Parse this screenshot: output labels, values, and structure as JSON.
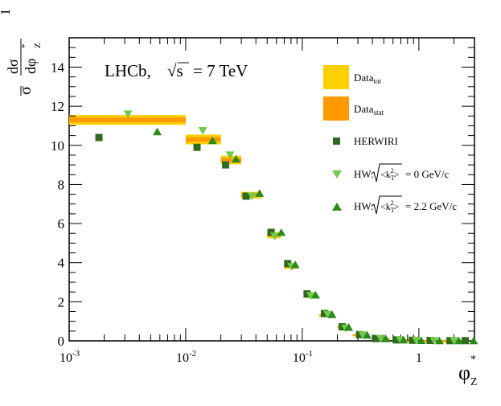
{
  "chart_data": {
    "type": "scatter",
    "title": "",
    "annotation": {
      "experiment": "LHCb,",
      "energy_prefix": "√s",
      "energy_value": "= 7 TeV"
    },
    "xaxis": {
      "label_main": "φ",
      "label_sup": "*",
      "label_sub": "Z",
      "scale": "log",
      "range": [
        0.001,
        3.0
      ],
      "ticks": [
        {
          "v": 0.001,
          "base": "10",
          "exp": "-3"
        },
        {
          "v": 0.01,
          "base": "10",
          "exp": "-2"
        },
        {
          "v": 0.1,
          "base": "10",
          "exp": "-1"
        },
        {
          "v": 1,
          "base": "1",
          "exp": ""
        }
      ]
    },
    "yaxis": {
      "label_parts": {
        "frac_num": "1",
        "frac_den": "σ",
        "d_num": "dσ",
        "d_den": "dφ",
        "d_den_sup": "*",
        "d_den_sub": "Z"
      },
      "range": [
        0,
        15.5
      ],
      "ticks": [
        "0",
        "2",
        "4",
        "6",
        "8",
        "10",
        "12",
        "14"
      ],
      "tick_values": [
        0,
        2,
        4,
        6,
        8,
        10,
        12,
        14
      ]
    },
    "bands": [
      {
        "x0": 0.001,
        "x1": 0.01,
        "y": 11.3,
        "tot": 0.25,
        "stat": 0.12
      },
      {
        "x0": 0.01,
        "x1": 0.02,
        "y": 10.3,
        "tot": 0.25,
        "stat": 0.12
      },
      {
        "x0": 0.02,
        "x1": 0.03,
        "y": 9.25,
        "tot": 0.22,
        "stat": 0.1
      },
      {
        "x0": 0.03,
        "x1": 0.045,
        "y": 7.45,
        "tot": 0.17,
        "stat": 0.08
      },
      {
        "x0": 0.05,
        "x1": 0.065,
        "y": 5.4,
        "tot": 0.15,
        "stat": 0.07
      },
      {
        "x0": 0.07,
        "x1": 0.09,
        "y": 3.8,
        "tot": 0.12,
        "stat": 0.05
      },
      {
        "x0": 0.105,
        "x1": 0.13,
        "y": 2.3,
        "tot": 0.1,
        "stat": 0.05
      },
      {
        "x0": 0.14,
        "x1": 0.185,
        "y": 1.3,
        "tot": 0.08,
        "stat": 0.04
      },
      {
        "x0": 0.2,
        "x1": 0.26,
        "y": 0.7,
        "tot": 0.06,
        "stat": 0.03
      },
      {
        "x0": 0.27,
        "x1": 0.36,
        "y": 0.3,
        "tot": 0.05,
        "stat": 0.02
      },
      {
        "x0": 0.4,
        "x1": 0.56,
        "y": 0.12,
        "tot": 0.04,
        "stat": 0.02
      },
      {
        "x0": 0.6,
        "x1": 0.9,
        "y": 0.05,
        "tot": 0.03,
        "stat": 0.015
      },
      {
        "x0": 1.0,
        "x1": 1.4,
        "y": 0.02,
        "tot": 0.02,
        "stat": 0.01
      },
      {
        "x0": 1.5,
        "x1": 2.6,
        "y": 0.01,
        "tot": 0.02,
        "stat": 0.01
      }
    ],
    "series": [
      {
        "name": "HERWIRI",
        "marker": "square",
        "color": "#2e6b1e",
        "x": [
          0.0018,
          0.0125,
          0.022,
          0.033,
          0.054,
          0.075,
          0.11,
          0.155,
          0.22,
          0.31,
          0.43,
          0.64,
          0.88,
          1.25,
          1.85,
          2.5
        ],
        "y": [
          10.4,
          9.9,
          9.0,
          7.4,
          5.55,
          3.95,
          2.4,
          1.4,
          0.72,
          0.32,
          0.12,
          0.05,
          0.03,
          0.02,
          0.01,
          0.01
        ]
      },
      {
        "name": "HW: k0",
        "marker": "triangle-down",
        "color": "#72c94a",
        "x": [
          0.0032,
          0.014,
          0.024,
          0.037,
          0.058,
          0.081,
          0.118,
          0.165,
          0.235,
          0.33,
          0.47,
          0.69,
          0.95,
          1.35,
          2.0
        ],
        "y": [
          11.6,
          10.75,
          9.5,
          7.4,
          5.35,
          3.8,
          2.3,
          1.35,
          0.65,
          0.3,
          0.12,
          0.05,
          0.02,
          0.01,
          0.01
        ]
      },
      {
        "name": "HW: k22",
        "marker": "triangle-up",
        "color": "#2a8b18",
        "x": [
          0.0057,
          0.017,
          0.027,
          0.043,
          0.066,
          0.087,
          0.13,
          0.18,
          0.25,
          0.36,
          0.52,
          0.74,
          1.05,
          1.5,
          2.2,
          2.95
        ],
        "y": [
          10.7,
          10.25,
          9.3,
          7.55,
          5.55,
          3.9,
          2.35,
          1.35,
          0.7,
          0.3,
          0.12,
          0.05,
          0.02,
          0.01,
          0.01,
          0.01
        ]
      }
    ],
    "legend": {
      "placement": "top-right",
      "entries": [
        {
          "key": "data_tot",
          "main": "Data",
          "sub": "tot",
          "color": "#ffd000"
        },
        {
          "key": "data_stat",
          "main": "Data",
          "sub": "stat",
          "color": "#ff9a00"
        },
        {
          "key": "herwiri",
          "text": "HERWIRI"
        },
        {
          "key": "hw0",
          "prefix": "HW:",
          "k": "<k",
          "k_sub": "T",
          "k_sup": "2",
          "k_close": ">",
          "value": "= 0 GeV/c"
        },
        {
          "key": "hw22",
          "prefix": "HW:",
          "k": "<k",
          "k_sub": "T",
          "k_sup": "2",
          "k_close": ">",
          "value": "= 2.2 GeV/c"
        }
      ]
    }
  }
}
